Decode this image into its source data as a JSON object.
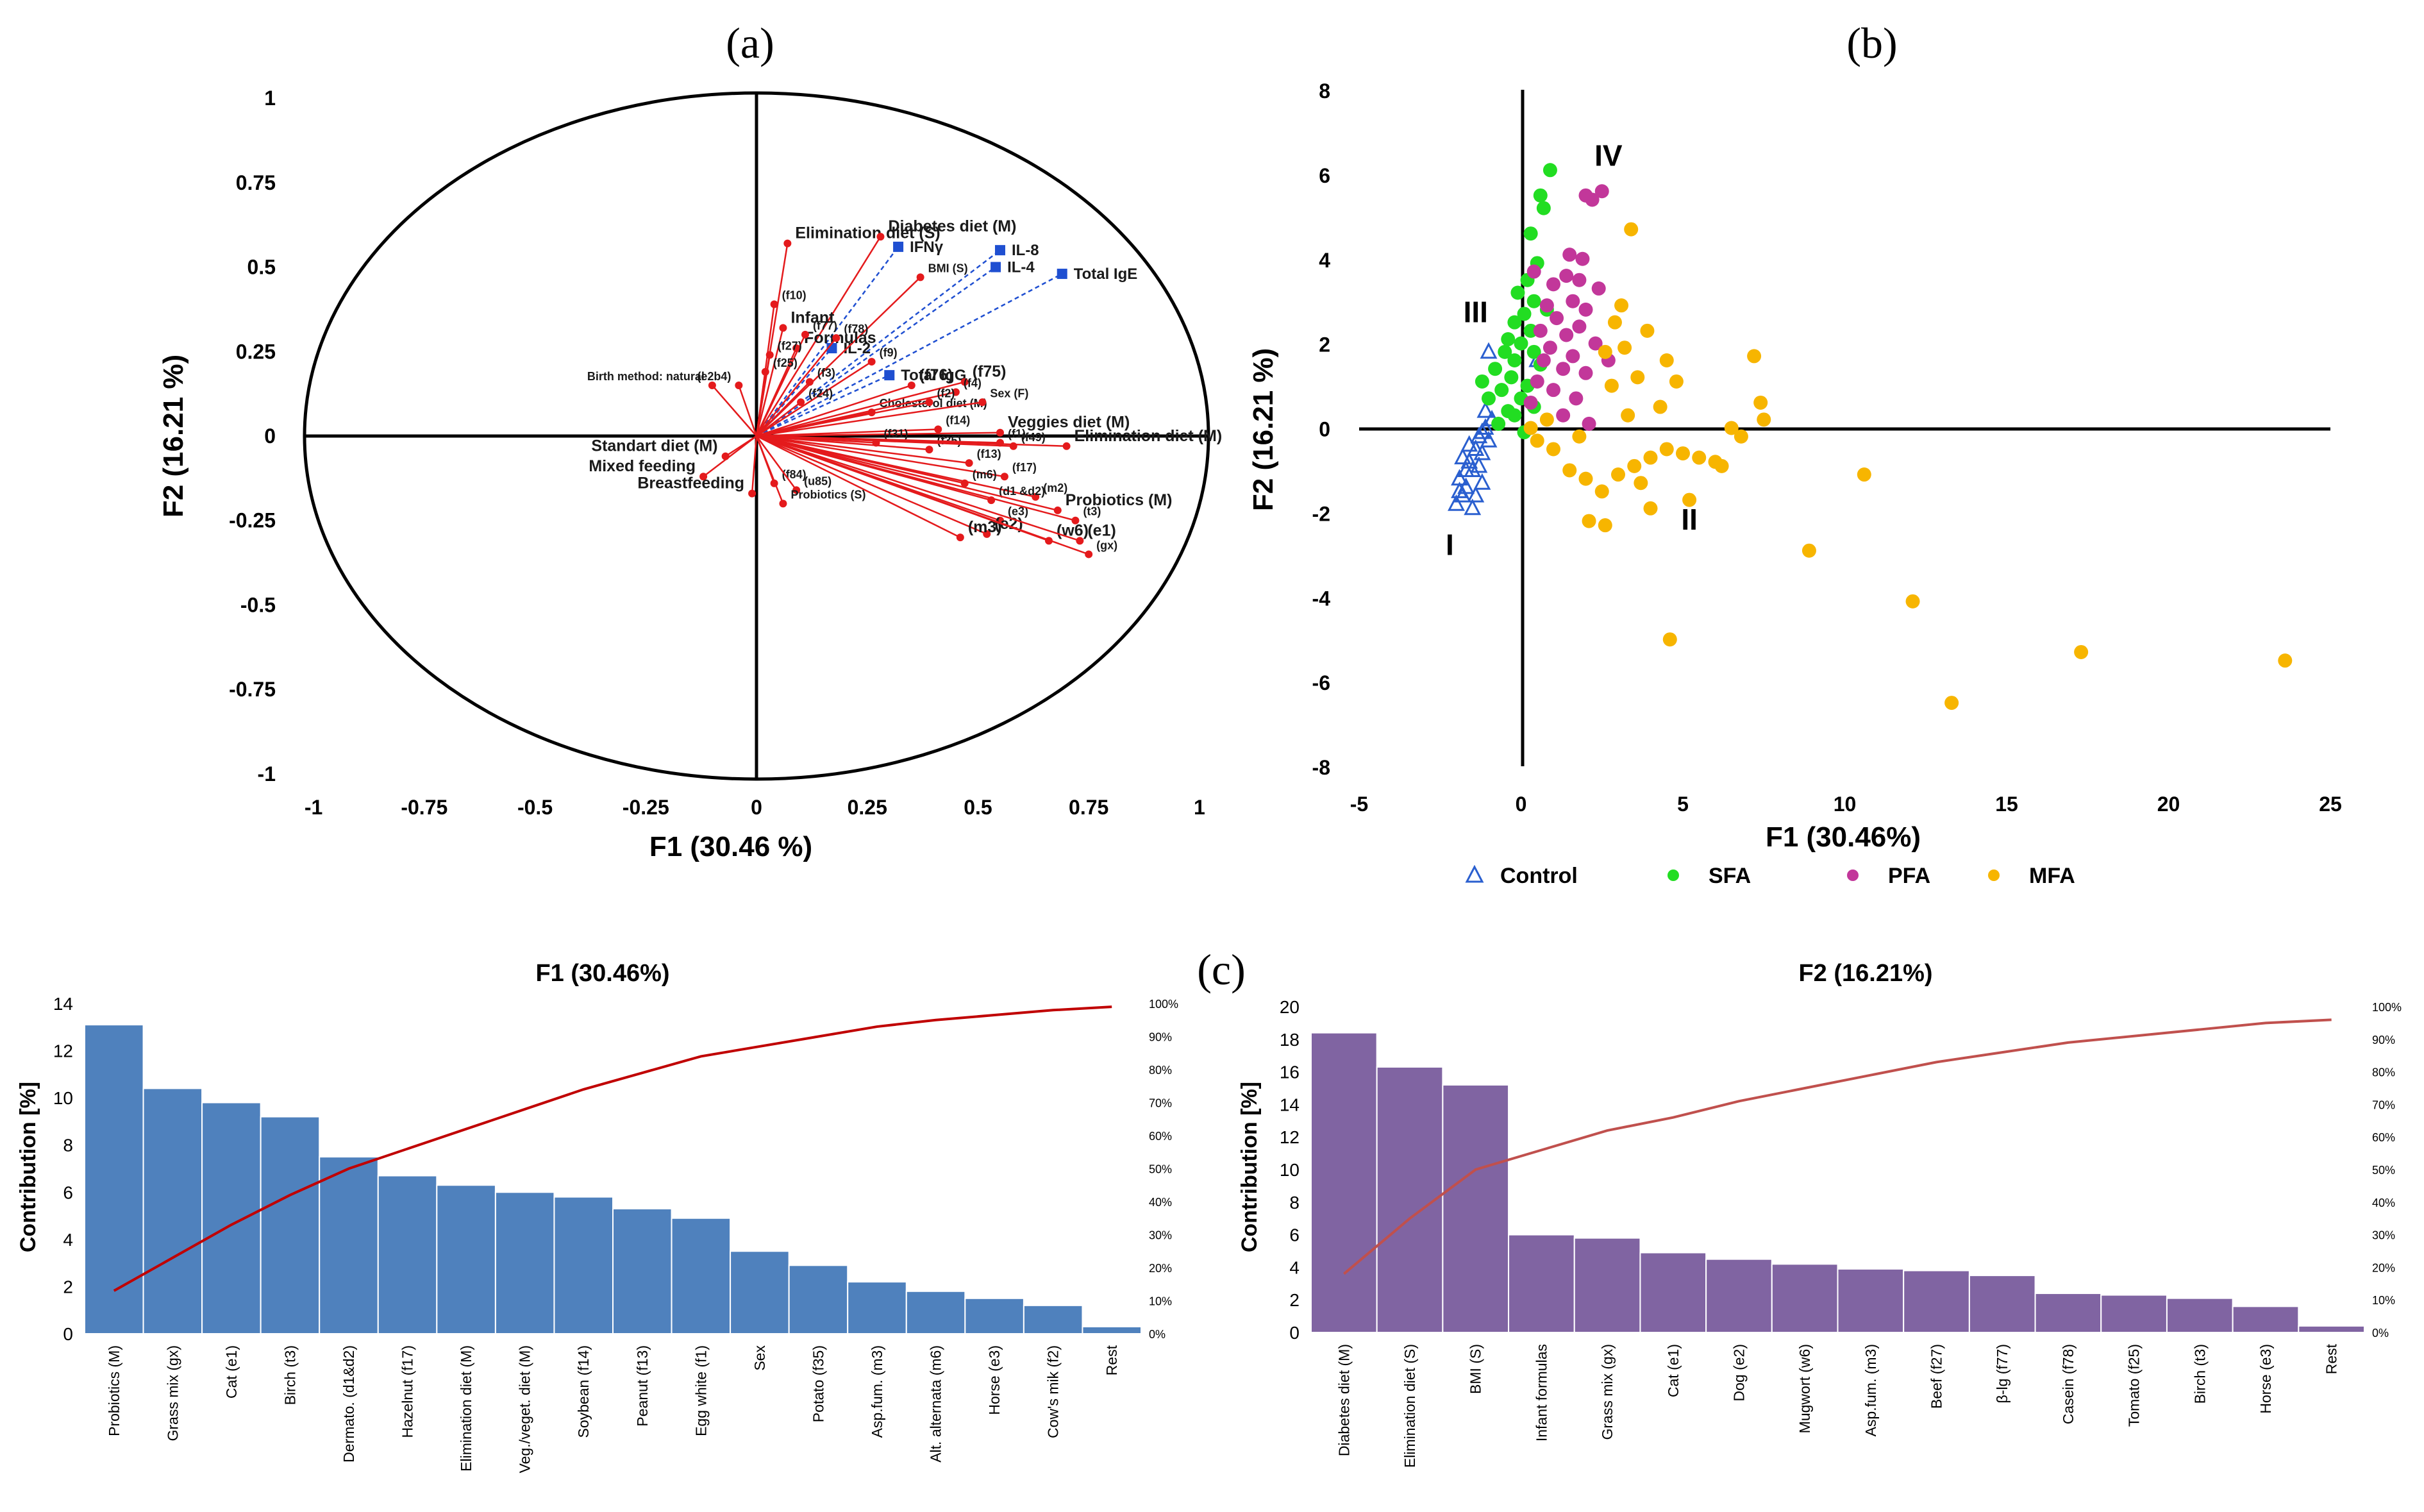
{
  "panels": {
    "a_label": "(a)",
    "b_label": "(b)",
    "c_label": "(c)"
  },
  "colors": {
    "red": "#e41a1c",
    "blue": "#1f4fd1",
    "control": "#2a5fcf",
    "sfa": "#22dd22",
    "pfa": "#c2379a",
    "mfa": "#f7b500",
    "f1bar": "#4f81bd",
    "f2bar": "#8064a2",
    "cum1": "#c00000",
    "cum2": "#c0504d"
  },
  "chart_data": [
    {
      "id": "a",
      "type": "scatter",
      "subtype": "correlation-circle",
      "title": "",
      "xlabel": "F1 (30.46 %)",
      "ylabel": "F2 (16.21 %)",
      "xlim": [
        -1,
        1
      ],
      "ylim": [
        -1,
        1
      ],
      "xticks": [
        "-1",
        "-0.75",
        "-0.5",
        "-0.25",
        "0",
        "0.25",
        "0.5",
        "0.75",
        "1"
      ],
      "yticks": [
        "1",
        "0.75",
        "0.5",
        "0.25",
        "0",
        "-0.25",
        "-0.5",
        "-0.75",
        "-1"
      ],
      "active_variables": [
        {
          "label": "Elimination diet (S)",
          "x": 0.07,
          "y": 0.57,
          "size": 2
        },
        {
          "label": "Diabetes diet (M)",
          "x": 0.28,
          "y": 0.59,
          "size": 2
        },
        {
          "label": "BMI (S)",
          "x": 0.37,
          "y": 0.47,
          "size": 1
        },
        {
          "label": "(f10)",
          "x": 0.04,
          "y": 0.39,
          "size": 1
        },
        {
          "label": "Infant",
          "x": 0.06,
          "y": 0.32,
          "size": 2
        },
        {
          "label": "Formulas",
          "x": 0.09,
          "y": 0.26,
          "size": 2
        },
        {
          "label": "(f77)",
          "x": 0.11,
          "y": 0.3,
          "size": 1
        },
        {
          "label": "(f78)",
          "x": 0.18,
          "y": 0.29,
          "size": 1
        },
        {
          "label": "(f27)",
          "x": 0.03,
          "y": 0.24,
          "size": 1
        },
        {
          "label": "(f25)",
          "x": 0.02,
          "y": 0.19,
          "size": 1
        },
        {
          "label": "(e2b4)",
          "x": -0.04,
          "y": 0.15,
          "size": 1
        },
        {
          "label": "Birth method: natural",
          "x": -0.1,
          "y": 0.15,
          "size": 1
        },
        {
          "label": "(f9)",
          "x": 0.26,
          "y": 0.22,
          "size": 1
        },
        {
          "label": "(f3)",
          "x": 0.12,
          "y": 0.16,
          "size": 1
        },
        {
          "label": "(f24)",
          "x": 0.1,
          "y": 0.1,
          "size": 1
        },
        {
          "label": "Cholesterol diet (M)",
          "x": 0.26,
          "y": 0.07,
          "size": 1
        },
        {
          "label": "(f76)",
          "x": 0.35,
          "y": 0.15,
          "size": 2
        },
        {
          "label": "(f75)",
          "x": 0.47,
          "y": 0.16,
          "size": 2
        },
        {
          "label": "(f4)",
          "x": 0.45,
          "y": 0.13,
          "size": 1
        },
        {
          "label": "(f2)",
          "x": 0.39,
          "y": 0.1,
          "size": 1
        },
        {
          "label": "Sex (F)",
          "x": 0.51,
          "y": 0.1,
          "size": 1
        },
        {
          "label": "(f14)",
          "x": 0.41,
          "y": 0.02,
          "size": 1
        },
        {
          "label": "Veggies diet (M)",
          "x": 0.55,
          "y": 0.01,
          "size": 2
        },
        {
          "label": "(f31)",
          "x": 0.27,
          "y": -0.02,
          "size": 1
        },
        {
          "label": "(f35)",
          "x": 0.39,
          "y": -0.04,
          "size": 1
        },
        {
          "label": "(f1)",
          "x": 0.55,
          "y": -0.02,
          "size": 1
        },
        {
          "label": "(f49)",
          "x": 0.58,
          "y": -0.03,
          "size": 1
        },
        {
          "label": "Elimination diet (M)",
          "x": 0.7,
          "y": -0.03,
          "size": 2
        },
        {
          "label": "(f13)",
          "x": 0.48,
          "y": -0.08,
          "size": 1
        },
        {
          "label": "(f17)",
          "x": 0.56,
          "y": -0.12,
          "size": 1
        },
        {
          "label": "(m6)",
          "x": 0.47,
          "y": -0.14,
          "size": 1
        },
        {
          "label": "(m2)",
          "x": 0.63,
          "y": -0.18,
          "size": 1
        },
        {
          "label": "(d1 &d2)",
          "x": 0.53,
          "y": -0.19,
          "size": 1
        },
        {
          "label": "Probiotics (M)",
          "x": 0.68,
          "y": -0.22,
          "size": 2
        },
        {
          "label": "(e3)",
          "x": 0.55,
          "y": -0.25,
          "size": 1
        },
        {
          "label": "(t3)",
          "x": 0.72,
          "y": -0.25,
          "size": 1
        },
        {
          "label": "(e2)",
          "x": 0.52,
          "y": -0.29,
          "size": 2
        },
        {
          "label": "(m3)",
          "x": 0.46,
          "y": -0.3,
          "size": 2
        },
        {
          "label": "(w6)",
          "x": 0.66,
          "y": -0.31,
          "size": 2
        },
        {
          "label": "(e1)",
          "x": 0.73,
          "y": -0.31,
          "size": 2
        },
        {
          "label": "(gx)",
          "x": 0.75,
          "y": -0.35,
          "size": 1
        },
        {
          "label": "Standart diet (M)",
          "x": -0.07,
          "y": -0.06,
          "size": 2
        },
        {
          "label": "Mixed feeding",
          "x": -0.12,
          "y": -0.12,
          "size": 2
        },
        {
          "label": "Breastfeeding",
          "x": -0.01,
          "y": -0.17,
          "size": 2
        },
        {
          "label": "(f84)",
          "x": 0.04,
          "y": -0.14,
          "size": 1
        },
        {
          "label": "(u85)",
          "x": 0.09,
          "y": -0.16,
          "size": 1
        },
        {
          "label": "Probiotics (S)",
          "x": 0.06,
          "y": -0.2,
          "size": 1
        }
      ],
      "supplementary_variables": [
        {
          "label": "IFNγ",
          "x": 0.32,
          "y": 0.56
        },
        {
          "label": "IL-8",
          "x": 0.55,
          "y": 0.55
        },
        {
          "label": "IL-4",
          "x": 0.54,
          "y": 0.5
        },
        {
          "label": "Total IgE",
          "x": 0.69,
          "y": 0.48
        },
        {
          "label": "IL-2",
          "x": 0.17,
          "y": 0.26
        },
        {
          "label": "Total IgG",
          "x": 0.3,
          "y": 0.18
        }
      ]
    },
    {
      "id": "b",
      "type": "scatter",
      "title": "",
      "xlabel": "F1 (30.46%)",
      "ylabel": "F2 (16.21 %)",
      "xlim": [
        -5,
        25
      ],
      "ylim": [
        -8,
        8
      ],
      "xticks": [
        "-5",
        "0",
        "5",
        "10",
        "15",
        "20",
        "25"
      ],
      "yticks": [
        "8",
        "6",
        "4",
        "2",
        "0",
        "-2",
        "-4",
        "-6",
        "-8"
      ],
      "group_labels": [
        {
          "label": "I",
          "x": -2.2,
          "y": -3.0
        },
        {
          "label": "II",
          "x": 5.2,
          "y": -2.4
        },
        {
          "label": "III",
          "x": -1.4,
          "y": 2.5
        },
        {
          "label": "IV",
          "x": 2.7,
          "y": 6.2
        }
      ],
      "series": [
        {
          "name": "Control",
          "marker": "triangle",
          "points": [
            [
              -2.0,
              -1.8
            ],
            [
              -1.8,
              -1.6
            ],
            [
              -1.9,
              -1.2
            ],
            [
              -1.7,
              -1.4
            ],
            [
              -1.6,
              -0.8
            ],
            [
              -1.5,
              -1.0
            ],
            [
              -1.4,
              -0.5
            ],
            [
              -1.3,
              -0.2
            ],
            [
              -1.2,
              -0.6
            ],
            [
              -1.1,
              0.0
            ],
            [
              -1.5,
              -1.9
            ],
            [
              -1.7,
              -1.0
            ],
            [
              -1.9,
              -1.5
            ],
            [
              -1.2,
              -1.3
            ],
            [
              -1.0,
              -0.3
            ],
            [
              -1.3,
              -0.9
            ],
            [
              -1.6,
              -0.4
            ],
            [
              -1.1,
              0.4
            ],
            [
              -1.0,
              1.8
            ],
            [
              0.5,
              1.6
            ],
            [
              -1.4,
              -1.6
            ],
            [
              -1.8,
              -0.7
            ],
            [
              -1.2,
              -0.1
            ],
            [
              -0.9,
              0.2
            ]
          ]
        },
        {
          "name": "SFA",
          "marker": "dot",
          "points": [
            [
              0.9,
              6.1
            ],
            [
              0.6,
              5.5
            ],
            [
              0.7,
              5.2
            ],
            [
              0.3,
              4.6
            ],
            [
              0.5,
              3.9
            ],
            [
              0.2,
              3.5
            ],
            [
              -0.1,
              3.2
            ],
            [
              0.4,
              3.0
            ],
            [
              0.1,
              2.7
            ],
            [
              -0.2,
              2.5
            ],
            [
              0.3,
              2.3
            ],
            [
              -0.4,
              2.1
            ],
            [
              0.0,
              2.0
            ],
            [
              -0.5,
              1.8
            ],
            [
              -0.2,
              1.6
            ],
            [
              0.6,
              1.5
            ],
            [
              -0.8,
              1.4
            ],
            [
              -0.3,
              1.2
            ],
            [
              0.2,
              1.0
            ],
            [
              -0.6,
              0.9
            ],
            [
              -1.0,
              0.7
            ],
            [
              0.4,
              0.5
            ],
            [
              -0.2,
              0.3
            ],
            [
              -0.7,
              0.1
            ],
            [
              0.1,
              -0.1
            ],
            [
              0.8,
              2.8
            ],
            [
              0.4,
              1.8
            ],
            [
              -0.4,
              0.4
            ],
            [
              -1.2,
              1.1
            ],
            [
              0.0,
              0.7
            ]
          ]
        },
        {
          "name": "PFA",
          "marker": "dot",
          "points": [
            [
              2.5,
              5.6
            ],
            [
              2.0,
              5.5
            ],
            [
              2.2,
              5.4
            ],
            [
              1.5,
              4.1
            ],
            [
              1.9,
              4.0
            ],
            [
              1.4,
              3.6
            ],
            [
              1.8,
              3.5
            ],
            [
              1.0,
              3.4
            ],
            [
              2.4,
              3.3
            ],
            [
              1.6,
              3.0
            ],
            [
              0.8,
              2.9
            ],
            [
              2.0,
              2.8
            ],
            [
              1.1,
              2.6
            ],
            [
              1.8,
              2.4
            ],
            [
              0.6,
              2.3
            ],
            [
              1.4,
              2.2
            ],
            [
              2.3,
              2.0
            ],
            [
              0.9,
              1.9
            ],
            [
              1.6,
              1.7
            ],
            [
              0.7,
              1.6
            ],
            [
              1.3,
              1.4
            ],
            [
              2.0,
              1.3
            ],
            [
              0.5,
              1.1
            ],
            [
              1.0,
              0.9
            ],
            [
              1.7,
              0.7
            ],
            [
              0.3,
              0.6
            ],
            [
              1.3,
              0.3
            ],
            [
              2.1,
              0.1
            ],
            [
              0.4,
              3.7
            ],
            [
              2.7,
              1.6
            ]
          ]
        },
        {
          "name": "MFA",
          "marker": "dot",
          "points": [
            [
              3.4,
              4.7
            ],
            [
              3.1,
              2.9
            ],
            [
              2.9,
              2.5
            ],
            [
              3.9,
              2.3
            ],
            [
              3.2,
              1.9
            ],
            [
              2.6,
              1.8
            ],
            [
              4.5,
              1.6
            ],
            [
              3.6,
              1.2
            ],
            [
              4.8,
              1.1
            ],
            [
              2.8,
              1.0
            ],
            [
              6.5,
              0.0
            ],
            [
              7.2,
              1.7
            ],
            [
              7.4,
              0.6
            ],
            [
              7.5,
              0.2
            ],
            [
              6.8,
              -0.2
            ],
            [
              6.0,
              -0.8
            ],
            [
              5.5,
              -0.7
            ],
            [
              5.0,
              -0.6
            ],
            [
              4.5,
              -0.5
            ],
            [
              4.0,
              -0.7
            ],
            [
              3.5,
              -0.9
            ],
            [
              3.0,
              -1.1
            ],
            [
              2.5,
              -1.5
            ],
            [
              2.0,
              -1.2
            ],
            [
              1.5,
              -1.0
            ],
            [
              1.0,
              -0.5
            ],
            [
              0.5,
              -0.3
            ],
            [
              2.1,
              -2.2
            ],
            [
              2.6,
              -2.3
            ],
            [
              3.7,
              -1.3
            ],
            [
              5.2,
              -1.7
            ],
            [
              4.0,
              -1.9
            ],
            [
              8.9,
              -2.9
            ],
            [
              10.6,
              -1.1
            ],
            [
              12.1,
              -4.1
            ],
            [
              4.6,
              -5.0
            ],
            [
              13.3,
              -6.5
            ],
            [
              17.3,
              -5.3
            ],
            [
              23.6,
              -5.5
            ],
            [
              0.3,
              0.0
            ],
            [
              1.8,
              -0.2
            ],
            [
              0.8,
              0.2
            ],
            [
              6.2,
              -0.9
            ],
            [
              4.3,
              0.5
            ],
            [
              3.3,
              0.3
            ]
          ]
        }
      ],
      "legend": [
        "Control",
        "SFA",
        "PFA",
        "MFA"
      ],
      "legend_position": "bottom"
    },
    {
      "id": "c1",
      "type": "bar",
      "title": "F1 (30.46%)",
      "xlabel": "",
      "ylabel": "Contribution [%]",
      "ylim": [
        0,
        14
      ],
      "yticks": [
        "14",
        "12",
        "10",
        "8",
        "6",
        "4",
        "2",
        "0"
      ],
      "y2ticks": [
        "100%",
        "90%",
        "80%",
        "70%",
        "60%",
        "50%",
        "40%",
        "30%",
        "20%",
        "10%",
        "0%"
      ],
      "categories": [
        "Probiotics (M)",
        "Grass mix (gx)",
        "Cat (e1)",
        "Birch (t3)",
        "Dermato. (d1&d2)",
        "Hazelnut (f17)",
        "Elimination diet (M)",
        "Veg./veget. diet (M)",
        "Soybean (f14)",
        "Peanut (f13)",
        "Egg white (f1)",
        "Sex",
        "Potato (f35)",
        "Asp.fum. (m3)",
        "Alt. alternata (m6)",
        "Horse (e3)",
        "Cow's mik (f2)",
        "Rest"
      ],
      "values": [
        13.1,
        10.4,
        9.8,
        9.2,
        7.5,
        6.7,
        6.3,
        6.0,
        5.8,
        5.3,
        4.9,
        3.5,
        2.9,
        2.2,
        1.8,
        1.5,
        1.2,
        0.3
      ],
      "cumulative_pct": [
        13,
        23,
        33,
        42,
        50,
        56,
        62,
        68,
        74,
        79,
        84,
        87,
        90,
        93,
        95,
        96.5,
        98,
        99
      ]
    },
    {
      "id": "c2",
      "type": "bar",
      "title": "F2 (16.21%)",
      "xlabel": "",
      "ylabel": "Contribution [%]",
      "ylim": [
        0,
        20
      ],
      "yticks": [
        "20",
        "18",
        "16",
        "14",
        "12",
        "10",
        "8",
        "6",
        "4",
        "2",
        "0"
      ],
      "y2ticks": [
        "100%",
        "90%",
        "80%",
        "70%",
        "60%",
        "50%",
        "40%",
        "30%",
        "20%",
        "10%",
        "0%"
      ],
      "categories": [
        "Diabetes diet (M)",
        "Elimination diet (S)",
        "BMI (S)",
        "Infant formulas",
        "Grass mix (gx)",
        "Cat (e1)",
        "Dog (e2)",
        "Mugwort (w6)",
        "Asp.fum. (m3)",
        "Beef (f27)",
        "β-lg (f77)",
        "Casein (f78)",
        "Tomato (f25)",
        "Birch (t3)",
        "Horse (e3)",
        "Rest"
      ],
      "values": [
        18.4,
        16.3,
        15.2,
        6.0,
        5.8,
        4.9,
        4.5,
        4.2,
        3.9,
        3.8,
        3.5,
        2.4,
        2.3,
        2.1,
        1.6,
        0.4
      ],
      "cumulative_pct": [
        18,
        35,
        50,
        56,
        62,
        66,
        71,
        75,
        79,
        83,
        86,
        89,
        91,
        93,
        95,
        96
      ]
    }
  ]
}
